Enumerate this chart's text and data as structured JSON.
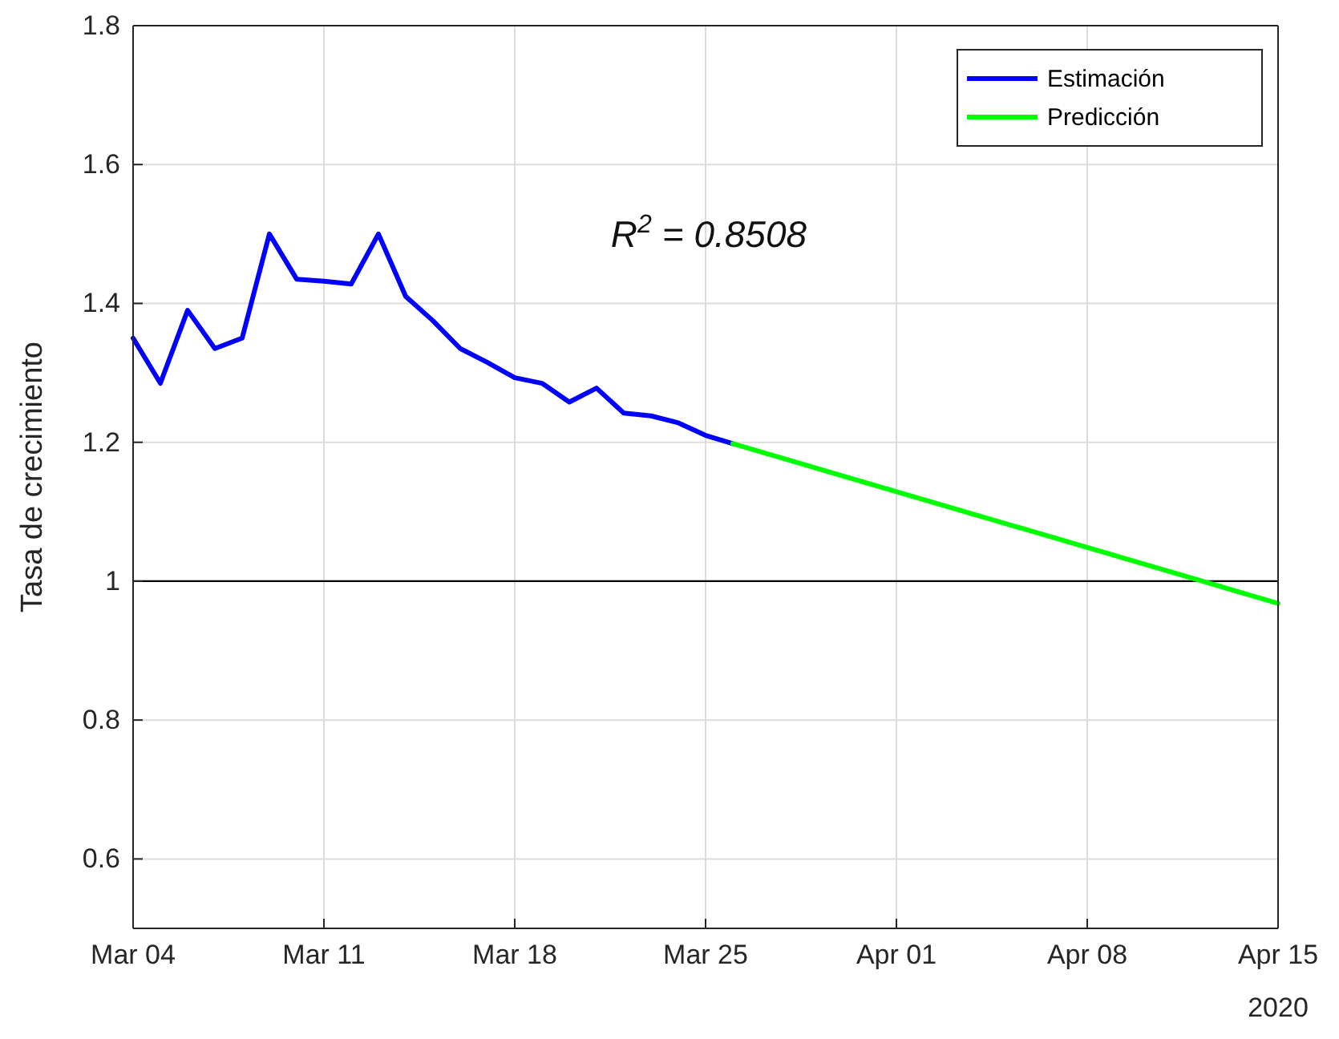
{
  "chart_data": {
    "type": "line",
    "ylabel": "Tasa de crecimiento",
    "xlim": [
      "2020-03-04",
      "2020-04-15"
    ],
    "xticks": [
      {
        "value": "2020-03-04",
        "label": "Mar 04"
      },
      {
        "value": "2020-03-11",
        "label": "Mar 11"
      },
      {
        "value": "2020-03-18",
        "label": "Mar 18"
      },
      {
        "value": "2020-03-25",
        "label": "Mar 25"
      },
      {
        "value": "2020-04-01",
        "label": "Apr 01"
      },
      {
        "value": "2020-04-08",
        "label": "Apr 08"
      },
      {
        "value": "2020-04-15",
        "label": "Apr 15"
      }
    ],
    "ylim": [
      0.5,
      1.8
    ],
    "yticks": [
      {
        "value": 0.6,
        "label": "0.6"
      },
      {
        "value": 0.8,
        "label": "0.8"
      },
      {
        "value": 1,
        "label": "1"
      },
      {
        "value": 1.2,
        "label": "1.2"
      },
      {
        "value": 1.4,
        "label": "1.4"
      },
      {
        "value": 1.6,
        "label": "1.6"
      },
      {
        "value": 1.8,
        "label": "1.8"
      }
    ],
    "grid": true,
    "legend": "top right",
    "series": [
      {
        "name": "Estimación",
        "color": "#0000ff",
        "x": [
          "2020-03-04",
          "2020-03-05",
          "2020-03-06",
          "2020-03-07",
          "2020-03-08",
          "2020-03-09",
          "2020-03-10",
          "2020-03-11",
          "2020-03-12",
          "2020-03-13",
          "2020-03-14",
          "2020-03-15",
          "2020-03-16",
          "2020-03-17",
          "2020-03-18",
          "2020-03-19",
          "2020-03-20",
          "2020-03-21",
          "2020-03-22",
          "2020-03-23",
          "2020-03-24",
          "2020-03-25",
          "2020-03-26"
        ],
        "values": [
          1.35,
          1.285,
          1.39,
          1.335,
          1.35,
          1.5,
          1.435,
          1.432,
          1.428,
          1.5,
          1.41,
          1.375,
          1.335,
          1.315,
          1.293,
          1.285,
          1.258,
          1.278,
          1.242,
          1.238,
          1.228,
          1.21,
          1.198
        ]
      },
      {
        "name": "Predicción",
        "color": "#00ff00",
        "x": [
          "2020-03-26",
          "2020-04-15"
        ],
        "values": [
          1.198,
          0.968
        ]
      }
    ],
    "ref_lines": [
      {
        "axis": "y",
        "value": 1,
        "color": "#000000"
      }
    ],
    "annotations": [
      "R$^{2}$ = 0.8508",
      "2020"
    ]
  }
}
